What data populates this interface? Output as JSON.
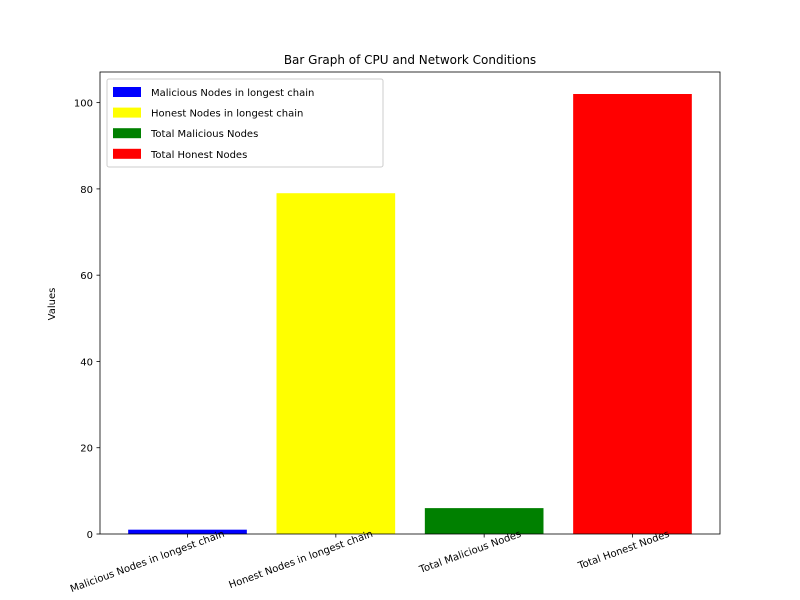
{
  "chart_data": {
    "type": "bar",
    "title": "Bar Graph of CPU and Network Conditions",
    "xlabel": "",
    "ylabel": "Values",
    "categories": [
      "Malicious Nodes in longest chain",
      "Honest Nodes in longest chain",
      "Total Malicious Nodes",
      "Total Honest Nodes"
    ],
    "values": [
      1,
      79,
      6,
      102
    ],
    "colors": [
      "#0000ff",
      "#ffff00",
      "#008000",
      "#ff0000"
    ],
    "ylim": [
      0,
      107.1
    ],
    "yticks": [
      0,
      20,
      40,
      60,
      80,
      100
    ],
    "ytick_labels": [
      "0",
      "20",
      "40",
      "60",
      "80",
      "100"
    ],
    "xtick_rotation_deg": 20,
    "grid": false,
    "legend": {
      "placement": "top-left",
      "entries": [
        "Malicious Nodes in longest chain",
        "Honest Nodes in longest chain",
        "Total Malicious Nodes",
        "Total Honest Nodes"
      ]
    }
  }
}
